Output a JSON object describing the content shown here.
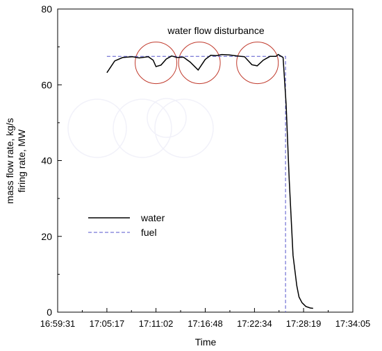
{
  "chart_data": {
    "type": "line",
    "annotation": "water flow disturbance",
    "xlabel": "Time",
    "ylabel": [
      "mass flow rate, kg/s",
      "firing rate, MW"
    ],
    "xlim": [
      "16:59:31",
      "17:34:05"
    ],
    "ylim": [
      0,
      80
    ],
    "x_ticks": [
      "16:59:31",
      "17:05:17",
      "17:11:02",
      "17:16:48",
      "17:22:34",
      "17:28:19",
      "17:34:05"
    ],
    "y_ticks": [
      0,
      20,
      40,
      60,
      80
    ],
    "legend": {
      "position": "left-middle"
    },
    "series": [
      {
        "name": "water",
        "color": "#000000",
        "style": "solid",
        "x": [
          "17:05:17",
          "17:06:12",
          "17:07:08",
          "17:08:17",
          "17:09:04",
          "17:10:08",
          "17:10:42",
          "17:11:02",
          "17:11:37",
          "17:12:14",
          "17:12:52",
          "17:13:31",
          "17:14:15",
          "17:15:02",
          "17:15:58",
          "17:16:48",
          "17:17:27",
          "17:18:06",
          "17:18:44",
          "17:19:35",
          "17:20:36",
          "17:21:24",
          "17:22:16",
          "17:22:53",
          "17:23:36",
          "17:24:23",
          "17:25:05",
          "17:25:21",
          "17:25:55",
          "17:26:16",
          "17:26:38",
          "17:27:05",
          "17:27:31",
          "17:27:47",
          "17:28:08",
          "17:28:35",
          "17:29:06",
          "17:29:26"
        ],
        "values": [
          63.2,
          66.3,
          67.2,
          67.4,
          67.1,
          67.4,
          66.5,
          64.8,
          65.2,
          66.8,
          67.6,
          67.2,
          67.3,
          66.0,
          63.9,
          66.7,
          67.8,
          67.7,
          68.0,
          67.9,
          67.6,
          67.4,
          65.3,
          65.0,
          66.5,
          67.5,
          67.5,
          68.0,
          67.2,
          55.0,
          35.0,
          15.0,
          7.0,
          4.0,
          2.5,
          1.5,
          1.1,
          1.0
        ]
      },
      {
        "name": "fuel",
        "color": "#5555cc",
        "style": "dashed",
        "x": [
          "17:05:17",
          "17:26:12",
          "17:26:12"
        ],
        "values": [
          67.5,
          67.5,
          0
        ]
      }
    ],
    "circles": [
      {
        "x": "17:11:02",
        "y": 65.8
      },
      {
        "x": "17:16:07",
        "y": 65.8
      },
      {
        "x": "17:22:55",
        "y": 65.8
      }
    ]
  }
}
